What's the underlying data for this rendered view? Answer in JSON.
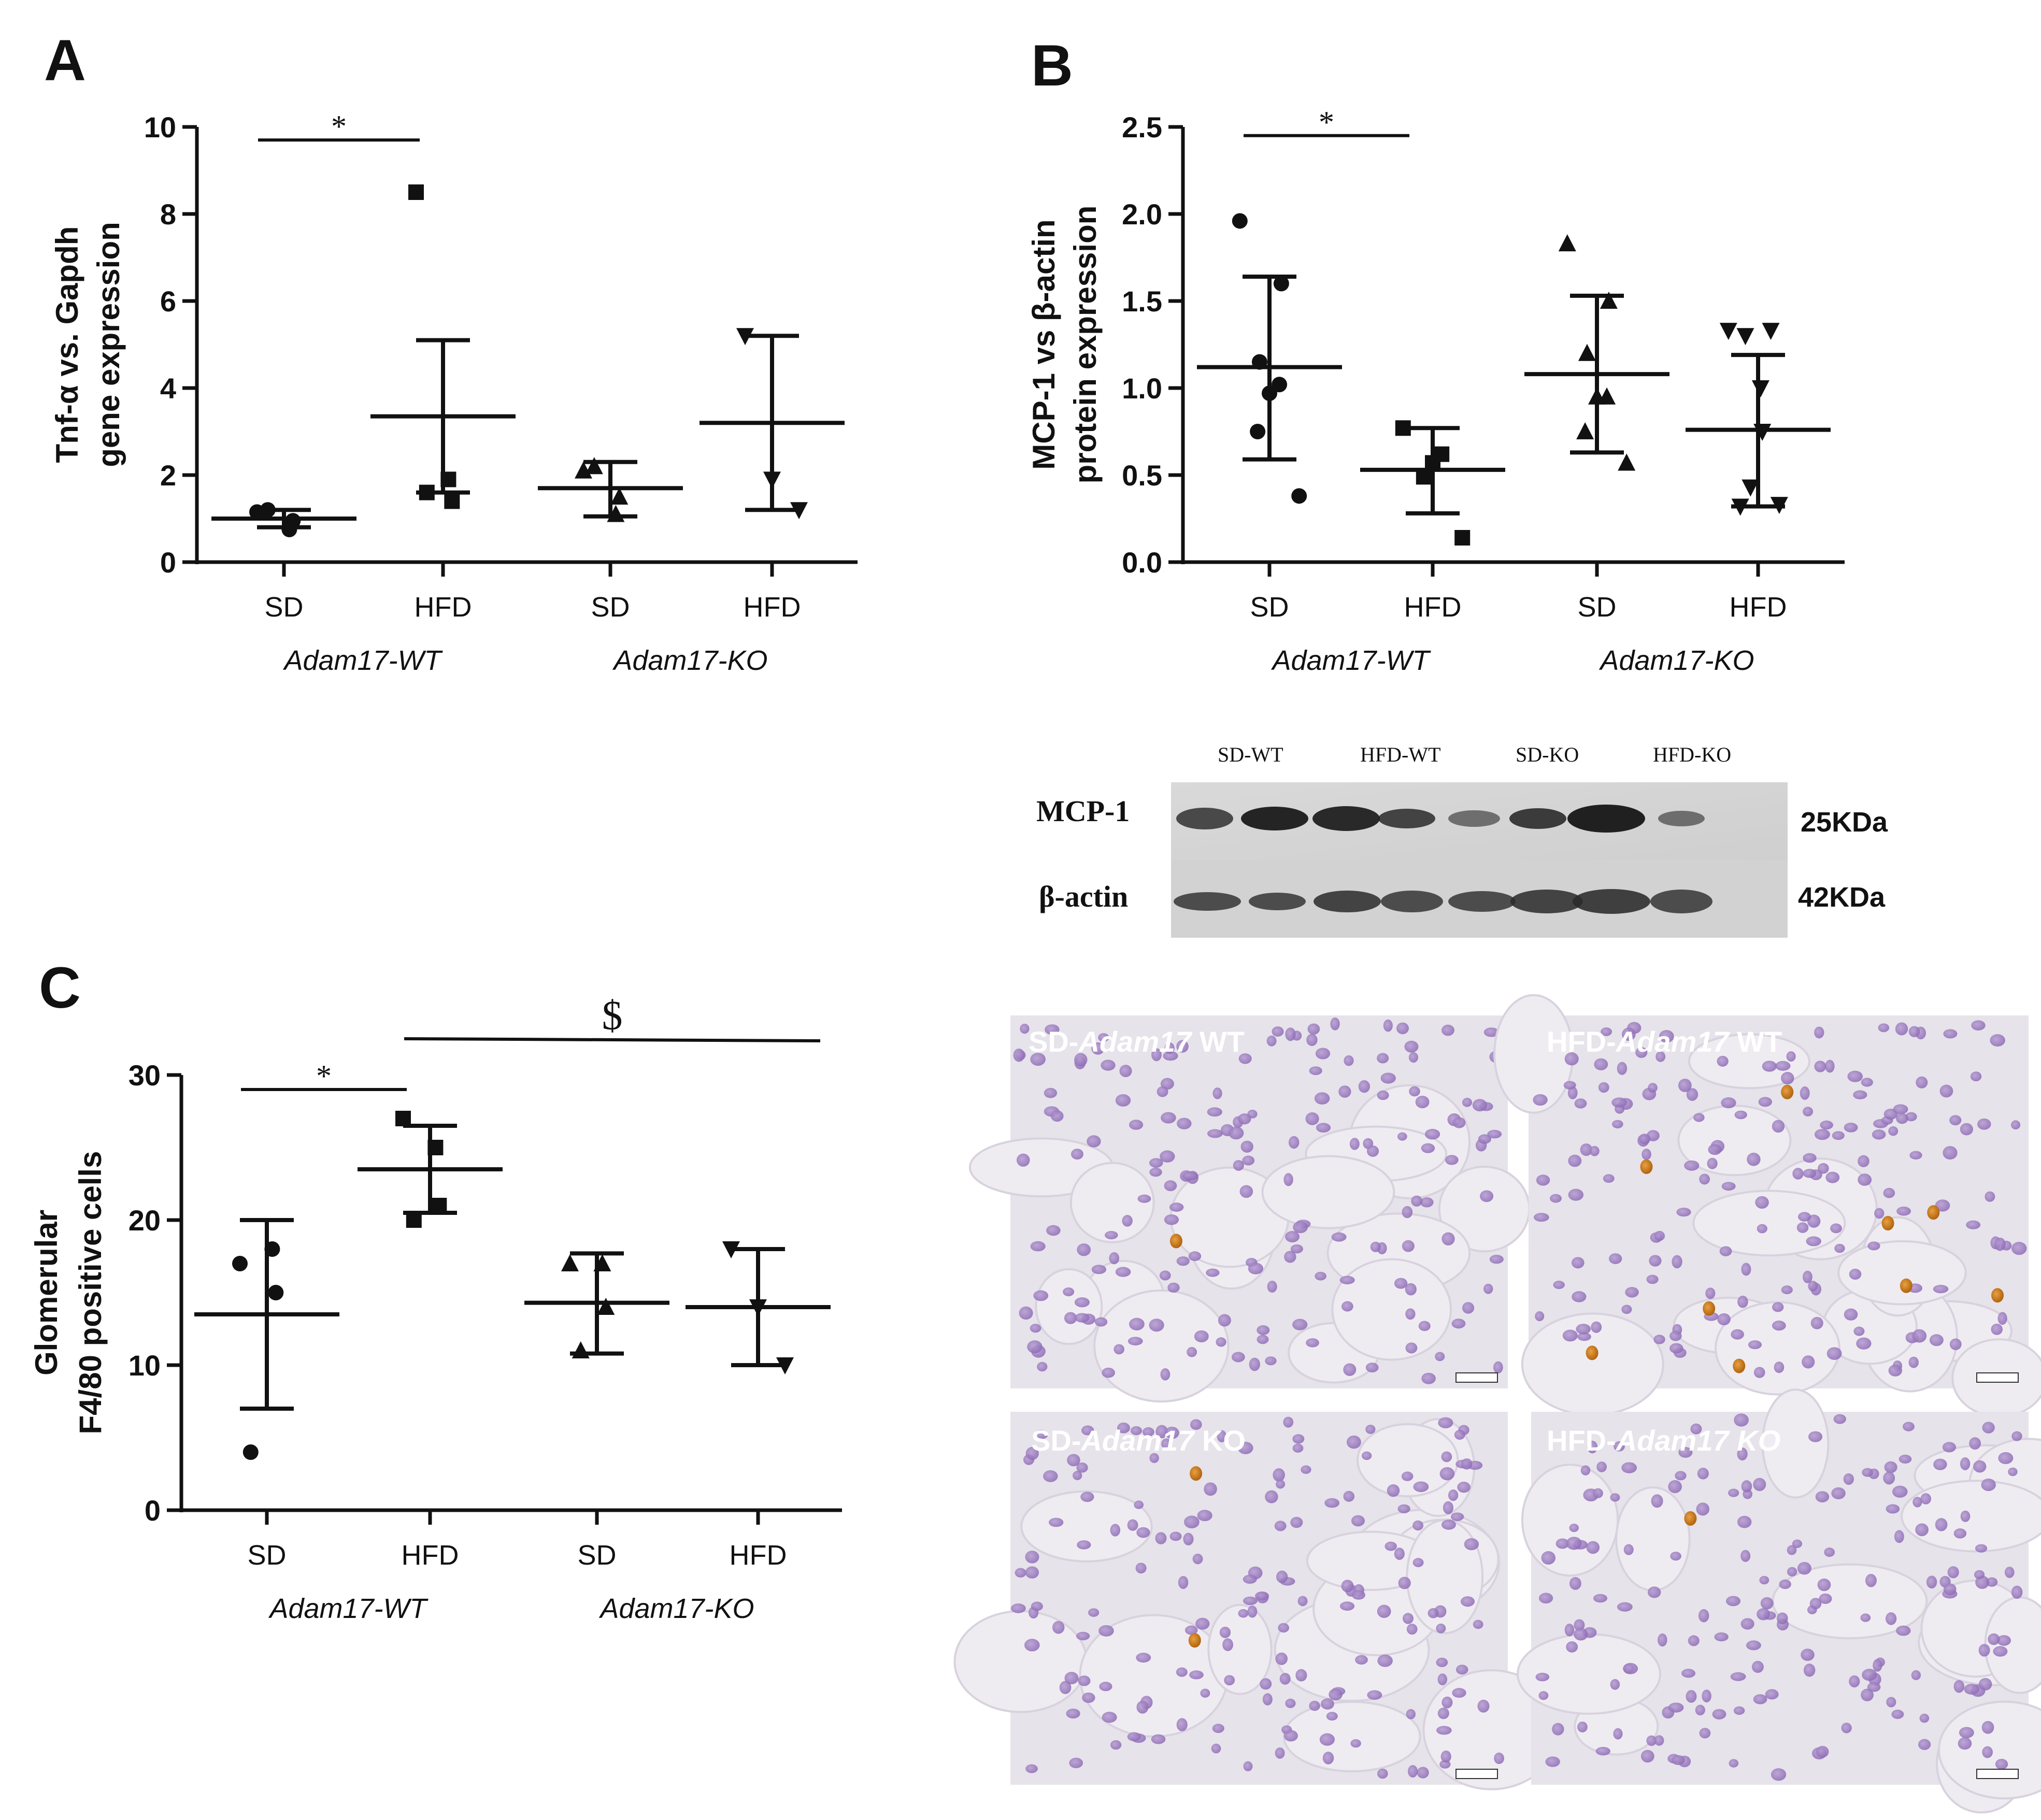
{
  "panels": {
    "A": {
      "letter": "A"
    },
    "B": {
      "letter": "B"
    },
    "C": {
      "letter": "C"
    }
  },
  "chart_data": [
    {
      "type": "scatter",
      "panel": "A",
      "ylabel_lines": [
        "Tnf-α vs. Gapdh",
        "gene expression"
      ],
      "ylim": [
        0,
        10
      ],
      "yticks": [
        "0",
        "2",
        "4",
        "6",
        "8",
        "10"
      ],
      "ytick_values": [
        0,
        2,
        4,
        6,
        8,
        10
      ],
      "categories": [
        "SD",
        "HFD",
        "SD",
        "HFD"
      ],
      "groups": [
        "Adam17-WT",
        "Adam17-KO"
      ],
      "series": [
        {
          "marker": "circle",
          "points": [
            1.15,
            0.75,
            0.95,
            1.2
          ],
          "mean": 1.0,
          "sd_low": 0.8,
          "sd_high": 1.2
        },
        {
          "marker": "square",
          "points": [
            8.5,
            1.9,
            1.4,
            1.6
          ],
          "mean": 3.35,
          "sd_low": 1.6,
          "sd_high": 5.1
        },
        {
          "marker": "triangle-up",
          "points": [
            2.1,
            1.1,
            1.5,
            2.2
          ],
          "mean": 1.7,
          "sd_low": 1.05,
          "sd_high": 2.3
        },
        {
          "marker": "triangle-down",
          "points": [
            5.2,
            1.9,
            1.2
          ],
          "mean": 3.2,
          "sd_low": 1.2,
          "sd_high": 5.2
        }
      ],
      "significance": [
        {
          "from": 0,
          "to": 1,
          "y": 9.7,
          "label": "*"
        }
      ],
      "grid": false
    },
    {
      "type": "scatter",
      "panel": "B",
      "ylabel_lines": [
        "MCP-1 vs β-actin",
        "protein expression"
      ],
      "ylim": [
        0,
        2.5
      ],
      "yticks": [
        "0.0",
        "0.5",
        "1.0",
        "1.5",
        "2.0",
        "2.5"
      ],
      "ytick_values": [
        0,
        0.5,
        1.0,
        1.5,
        2.0,
        2.5
      ],
      "categories": [
        "SD",
        "HFD",
        "SD",
        "HFD"
      ],
      "groups": [
        "Adam17-WT",
        "Adam17-KO"
      ],
      "series": [
        {
          "marker": "circle",
          "points": [
            1.96,
            1.6,
            1.15,
            0.97,
            1.02,
            0.75,
            0.38
          ],
          "mean": 1.12,
          "sd_low": 0.59,
          "sd_high": 1.64
        },
        {
          "marker": "square",
          "points": [
            0.77,
            0.62,
            0.57,
            0.49,
            0.14
          ],
          "mean": 0.53,
          "sd_low": 0.28,
          "sd_high": 0.77
        },
        {
          "marker": "triangle-up",
          "points": [
            1.83,
            1.5,
            1.2,
            0.95,
            0.95,
            0.75,
            0.57
          ],
          "mean": 1.08,
          "sd_low": 0.63,
          "sd_high": 1.53
        },
        {
          "marker": "triangle-down",
          "points": [
            1.33,
            1.33,
            1.3,
            1.0,
            0.75,
            0.43,
            0.33,
            0.32
          ],
          "mean": 0.76,
          "sd_low": 0.32,
          "sd_high": 1.19
        }
      ],
      "significance": [
        {
          "from": 0,
          "to": 1,
          "y": 2.45,
          "label": "*"
        }
      ],
      "grid": false
    },
    {
      "type": "scatter",
      "panel": "C",
      "ylabel_lines": [
        "Glomerular",
        "F4/80 positive cells"
      ],
      "ylim": [
        0,
        30
      ],
      "yticks": [
        "0",
        "10",
        "20",
        "30"
      ],
      "ytick_values": [
        0,
        10,
        20,
        30
      ],
      "categories": [
        "SD",
        "HFD",
        "SD",
        "HFD"
      ],
      "groups": [
        "Adam17-WT",
        "Adam17-KO"
      ],
      "series": [
        {
          "marker": "circle",
          "points": [
            17.0,
            18.0,
            15.0,
            4.0
          ],
          "mean": 13.5,
          "sd_low": 7.0,
          "sd_high": 20.0
        },
        {
          "marker": "square",
          "points": [
            27.0,
            25.0,
            21.0,
            20.0
          ],
          "mean": 23.5,
          "sd_low": 20.5,
          "sd_high": 26.5
        },
        {
          "marker": "triangle-up",
          "points": [
            17.0,
            17.0,
            14.0,
            11.0
          ],
          "mean": 14.3,
          "sd_low": 10.8,
          "sd_high": 17.7
        },
        {
          "marker": "triangle-down",
          "points": [
            18.0,
            14.0,
            10.0
          ],
          "mean": 14.0,
          "sd_low": 10.0,
          "sd_high": 18.0
        }
      ],
      "significance": [
        {
          "from": 0,
          "to": 1,
          "y": 29.0,
          "label": "*"
        },
        {
          "from": 1,
          "to": 3,
          "y": 32.5,
          "label": "$"
        }
      ],
      "grid": false
    }
  ],
  "western_blot": {
    "lanes": [
      "SD-WT",
      "HFD-WT",
      "SD-KO",
      "HFD-KO"
    ],
    "rows": [
      {
        "protein": "MCP-1",
        "kda": "25KDa"
      },
      {
        "protein": "β-actin",
        "kda": "42KDa"
      }
    ]
  },
  "micrographs": [
    {
      "prefix": "SD-",
      "gene": "Adam17",
      "suffix": " WT"
    },
    {
      "prefix": "HFD-",
      "gene": "Adam17",
      "suffix": " WT"
    },
    {
      "prefix": "SD-",
      "gene": "Adam17",
      "suffix": " KO"
    },
    {
      "prefix": "HFD-",
      "gene": "Adam17 KO",
      "suffix": ""
    }
  ]
}
